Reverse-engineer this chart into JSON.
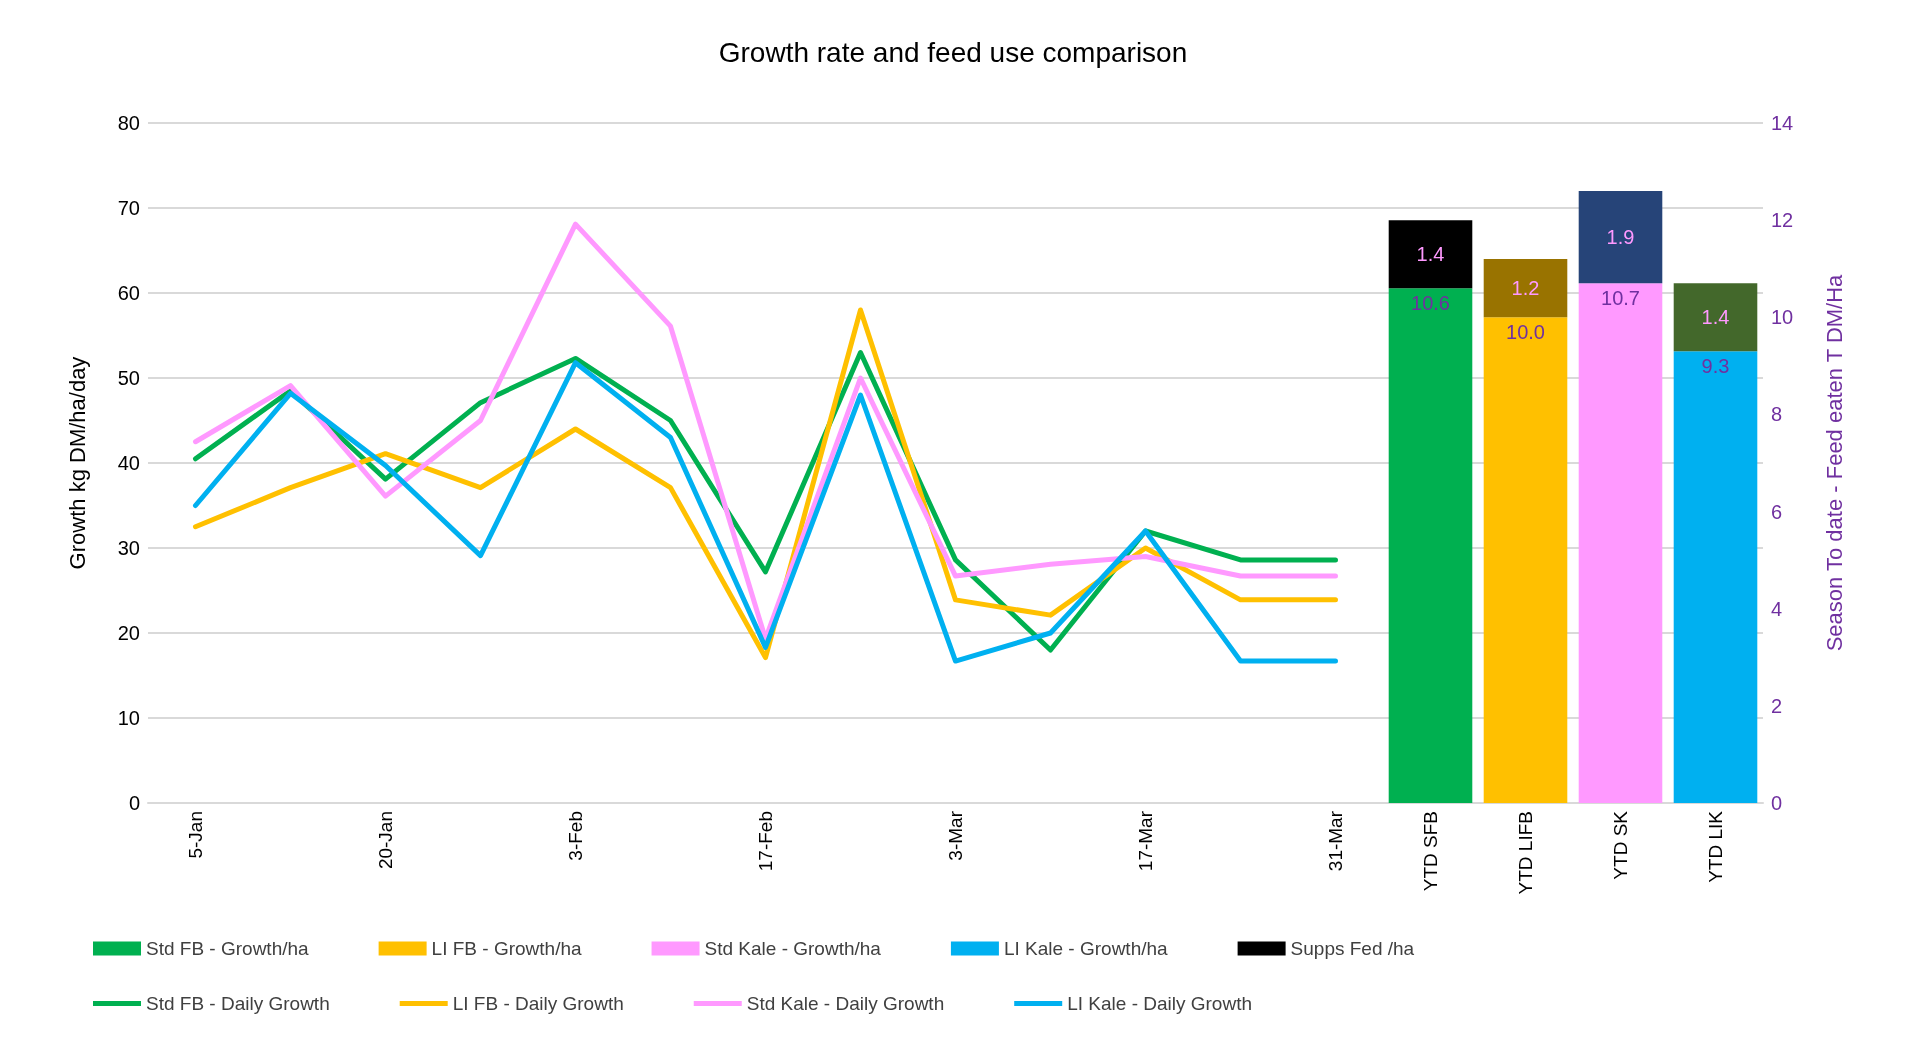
{
  "chart_data": {
    "type": "line",
    "title": "Growth rate and feed use comparison",
    "ylabel": "Growth kg DM/ha/day",
    "y2label": "Season To date - Feed eaten T DM/Ha",
    "categories": [
      "5-Jan",
      null,
      "20-Jan",
      null,
      "3-Feb",
      null,
      "17-Feb",
      null,
      "3-Mar",
      null,
      "17-Mar",
      null,
      "31-Mar",
      "YTD SFB",
      "YTD LIFB",
      "YTD SK",
      "YTD LIK"
    ],
    "ylim": [
      0,
      80
    ],
    "yticks": [
      0,
      10,
      20,
      30,
      40,
      50,
      60,
      70,
      80
    ],
    "y2lim": [
      0,
      14
    ],
    "y2ticks": [
      0,
      2,
      4,
      6,
      8,
      10,
      12,
      14
    ],
    "grid": "y",
    "legend": "bottom",
    "marker": "none",
    "stacked": true,
    "series": [
      {
        "type": "bar",
        "axis": "y2",
        "name": "Std FB - Growth/ha",
        "color": "#00b050",
        "values": [
          null,
          null,
          null,
          null,
          null,
          null,
          null,
          null,
          null,
          null,
          null,
          null,
          null,
          10.6,
          null,
          null,
          null
        ],
        "value_labels": [
          null,
          null,
          null,
          null,
          null,
          null,
          null,
          null,
          null,
          null,
          null,
          null,
          null,
          "10.6",
          null,
          null,
          null
        ]
      },
      {
        "type": "bar",
        "axis": "y2",
        "name": "LI FB - Growth/ha",
        "color": "#ffc000",
        "values": [
          null,
          null,
          null,
          null,
          null,
          null,
          null,
          null,
          null,
          null,
          null,
          null,
          null,
          null,
          10.0,
          null,
          null
        ],
        "value_labels": [
          null,
          null,
          null,
          null,
          null,
          null,
          null,
          null,
          null,
          null,
          null,
          null,
          null,
          null,
          "10.0",
          null,
          null
        ]
      },
      {
        "type": "bar",
        "axis": "y2",
        "name": "Std Kale - Growth/ha",
        "color": "#ff99ff",
        "values": [
          null,
          null,
          null,
          null,
          null,
          null,
          null,
          null,
          null,
          null,
          null,
          null,
          null,
          null,
          null,
          10.7,
          null
        ],
        "value_labels": [
          null,
          null,
          null,
          null,
          null,
          null,
          null,
          null,
          null,
          null,
          null,
          null,
          null,
          null,
          null,
          "10.7",
          null
        ]
      },
      {
        "type": "bar",
        "axis": "y2",
        "name": "LI Kale - Growth/ha",
        "color": "#00b0f0",
        "values": [
          null,
          null,
          null,
          null,
          null,
          null,
          null,
          null,
          null,
          null,
          null,
          null,
          null,
          null,
          null,
          null,
          9.3
        ],
        "value_labels": [
          null,
          null,
          null,
          null,
          null,
          null,
          null,
          null,
          null,
          null,
          null,
          null,
          null,
          null,
          null,
          null,
          "9.3"
        ]
      },
      {
        "type": "bar",
        "axis": "y2",
        "name": "Supps Fed /ha",
        "color": "#000000",
        "colors": [
          null,
          null,
          null,
          null,
          null,
          null,
          null,
          null,
          null,
          null,
          null,
          null,
          null,
          "#000000",
          "#997300",
          "#264478",
          "#43682b"
        ],
        "values": [
          null,
          null,
          null,
          null,
          null,
          null,
          null,
          null,
          null,
          null,
          null,
          null,
          null,
          1.4,
          1.2,
          1.9,
          1.4
        ],
        "value_labels": [
          null,
          null,
          null,
          null,
          null,
          null,
          null,
          null,
          null,
          null,
          null,
          null,
          null,
          "1.4",
          "1.2",
          "1.9",
          "1.4"
        ]
      },
      {
        "name": "Std FB - Daily Growth",
        "color": "#00b050",
        "values": [
          40.5,
          48.5,
          38.1,
          47.1,
          52.3,
          45,
          27.2,
          53,
          28.6,
          18,
          32,
          28.6,
          28.6,
          null,
          null,
          null,
          null
        ]
      },
      {
        "name": "LI FB - Daily Growth",
        "color": "#ffc000",
        "values": [
          32.5,
          37.1,
          41.1,
          37.1,
          44,
          37.1,
          17.1,
          58,
          23.9,
          22.1,
          30,
          23.9,
          23.9,
          null,
          null,
          null,
          null
        ]
      },
      {
        "name": "Std Kale - Daily Growth",
        "color": "#ff99ff",
        "values": [
          42.5,
          49.1,
          36.1,
          45,
          68.1,
          56.1,
          19.3,
          50,
          26.7,
          28.1,
          29,
          26.7,
          26.7,
          null,
          null,
          null,
          null
        ]
      },
      {
        "name": "LI Kale - Daily Growth",
        "color": "#00b0f0",
        "values": [
          35,
          48.2,
          39.7,
          29.1,
          51.8,
          43,
          18.3,
          48,
          16.7,
          20,
          32,
          16.7,
          16.7,
          null,
          null,
          null,
          null
        ]
      }
    ]
  }
}
